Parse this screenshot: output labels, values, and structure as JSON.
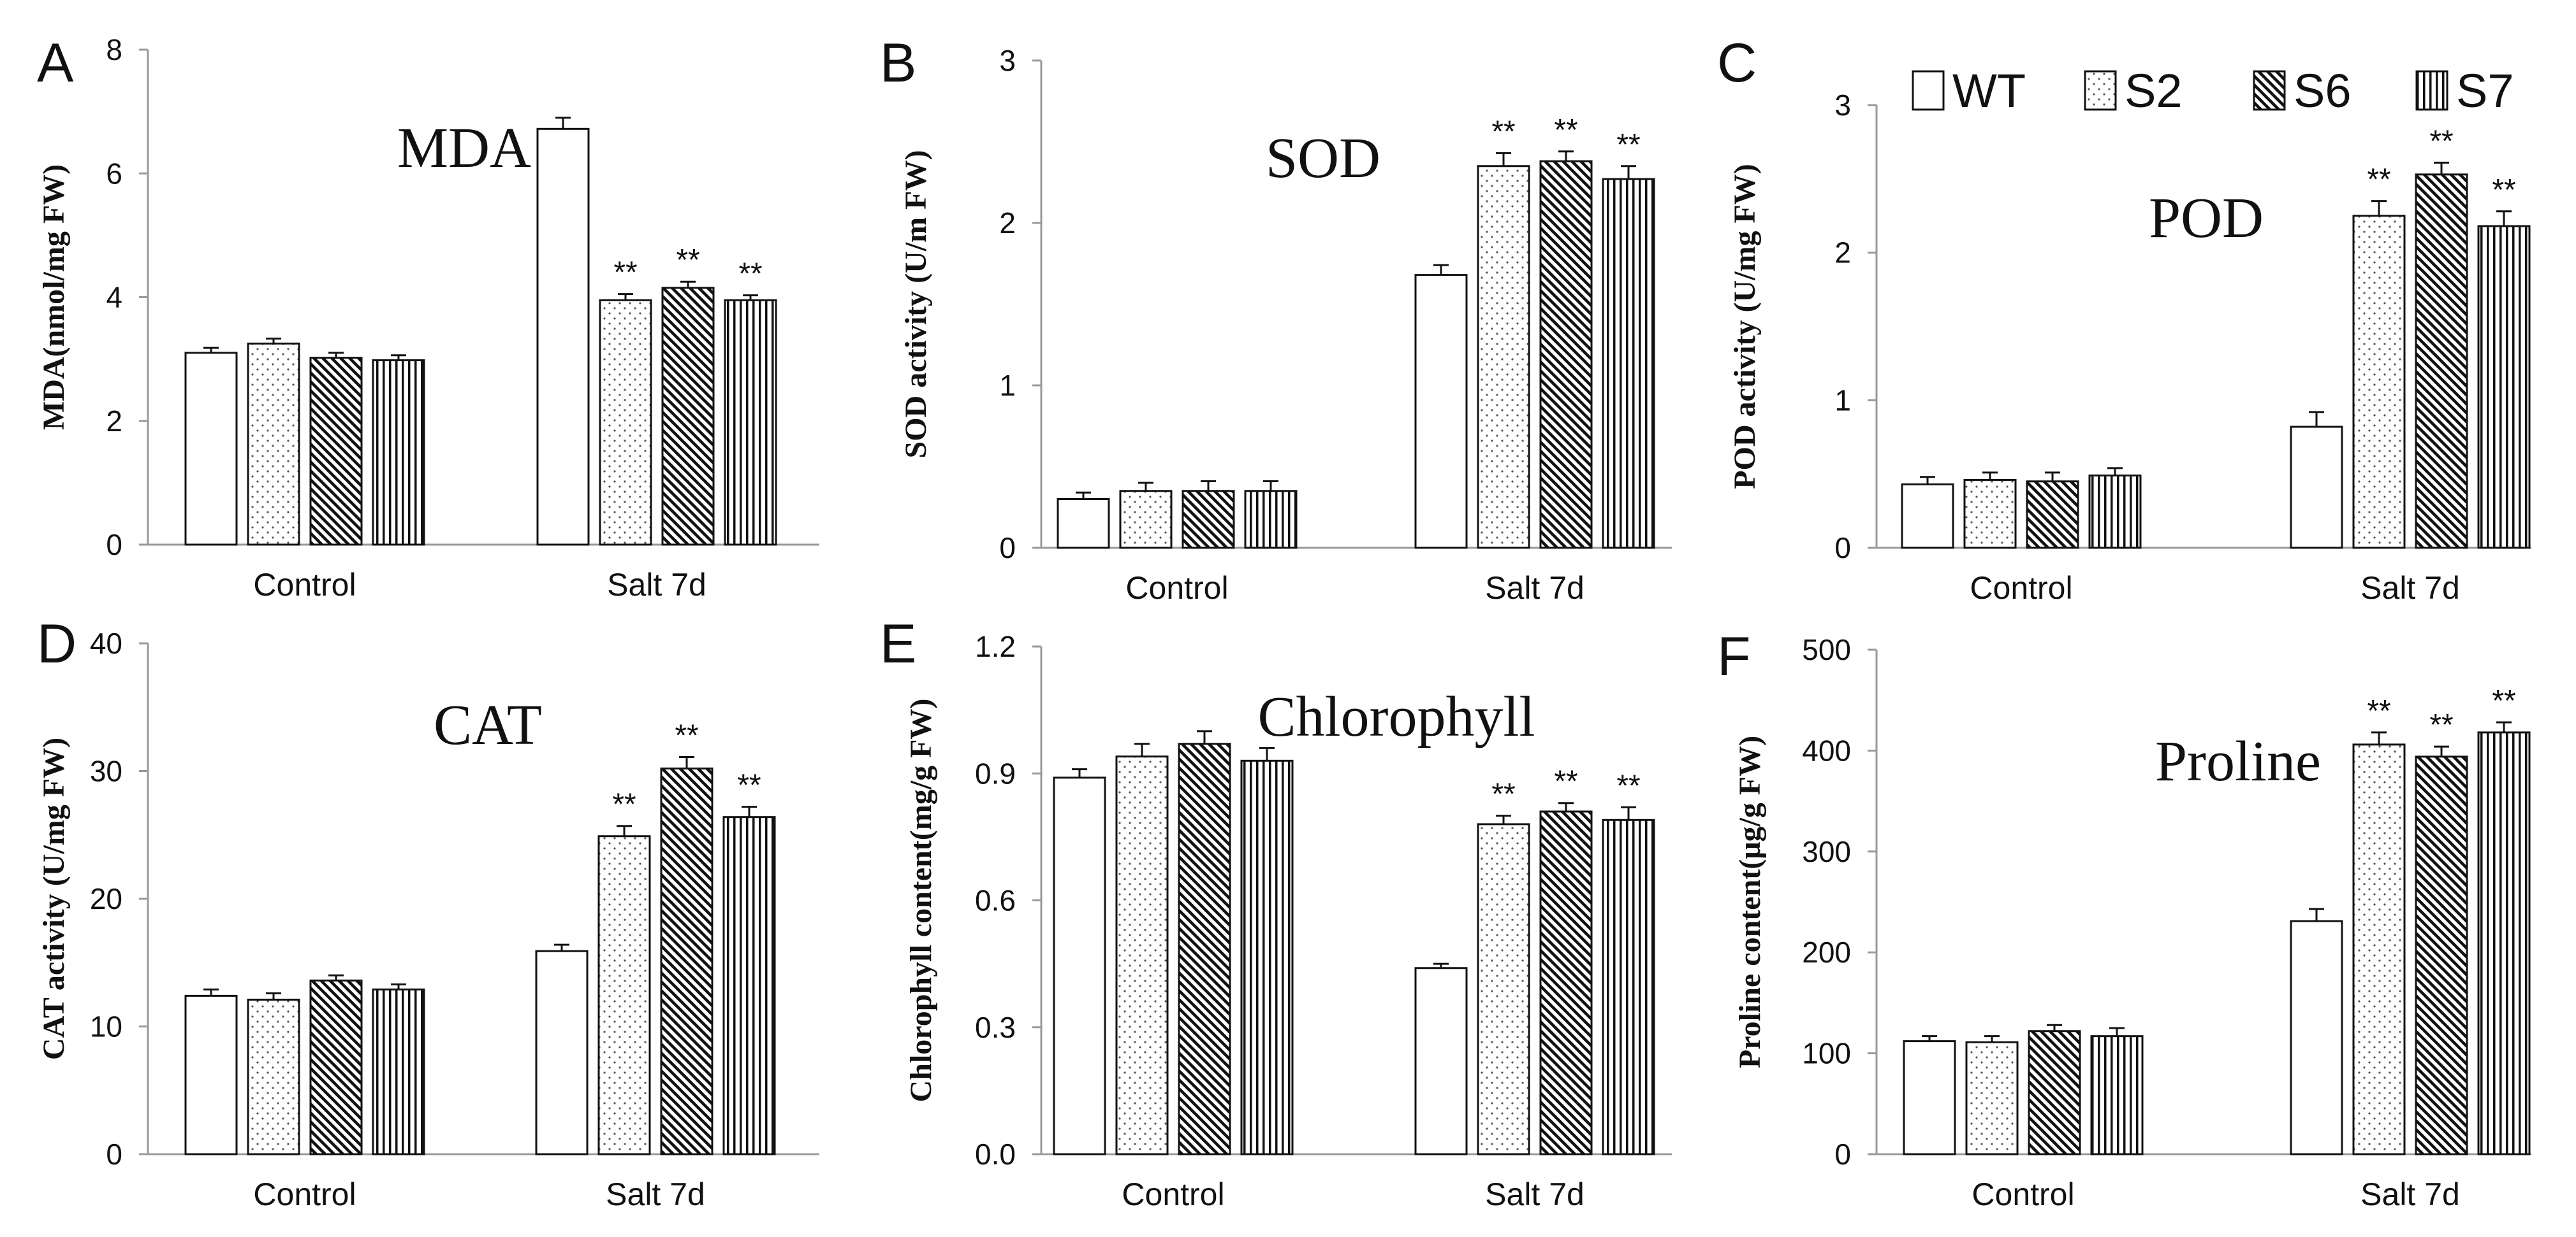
{
  "legend": {
    "items": [
      {
        "label": "WT",
        "pattern": "blank"
      },
      {
        "label": "S2",
        "pattern": "dots"
      },
      {
        "label": "S6",
        "pattern": "diag"
      },
      {
        "label": "S7",
        "pattern": "vert"
      }
    ]
  },
  "chart_data": [
    {
      "panel": "A",
      "type": "bar",
      "title": "MDA",
      "ylabel": "MDA(nmol/mg FW)",
      "xlabel": "",
      "categories": [
        "Control",
        "Salt 7d"
      ],
      "ylim": [
        0,
        8
      ],
      "yticks": [
        "0",
        "2",
        "4",
        "6",
        "8"
      ],
      "ytick_values": [
        0,
        2,
        4,
        6,
        8
      ],
      "series": [
        {
          "name": "WT",
          "values": [
            3.1,
            6.72
          ],
          "errors": [
            0.08,
            0.18
          ],
          "marks": [
            "",
            ""
          ]
        },
        {
          "name": "S2",
          "values": [
            3.25,
            3.95
          ],
          "errors": [
            0.08,
            0.1
          ],
          "marks": [
            "",
            "**"
          ]
        },
        {
          "name": "S6",
          "values": [
            3.02,
            4.15
          ],
          "errors": [
            0.08,
            0.1
          ],
          "marks": [
            "",
            "**"
          ]
        },
        {
          "name": "S7",
          "values": [
            2.98,
            3.95
          ],
          "errors": [
            0.08,
            0.08
          ],
          "marks": [
            "",
            "**"
          ]
        }
      ]
    },
    {
      "panel": "B",
      "type": "bar",
      "title": "SOD",
      "ylabel": "SOD activity (U/m FW)",
      "xlabel": "",
      "categories": [
        "Control",
        "Salt 7d"
      ],
      "ylim": [
        0,
        3
      ],
      "yticks": [
        "0",
        "1",
        "2",
        "3"
      ],
      "ytick_values": [
        0,
        1,
        2,
        3
      ],
      "series": [
        {
          "name": "WT",
          "values": [
            0.3,
            1.68
          ],
          "errors": [
            0.04,
            0.06
          ],
          "marks": [
            "",
            ""
          ]
        },
        {
          "name": "S2",
          "values": [
            0.35,
            2.35
          ],
          "errors": [
            0.05,
            0.08
          ],
          "marks": [
            "",
            "**"
          ]
        },
        {
          "name": "S6",
          "values": [
            0.35,
            2.38
          ],
          "errors": [
            0.06,
            0.06
          ],
          "marks": [
            "",
            "**"
          ]
        },
        {
          "name": "S7",
          "values": [
            0.35,
            2.27
          ],
          "errors": [
            0.06,
            0.08
          ],
          "marks": [
            "",
            "**"
          ]
        }
      ]
    },
    {
      "panel": "C",
      "type": "bar",
      "title": "POD",
      "ylabel": "POD activity (U/mg FW)",
      "xlabel": "",
      "categories": [
        "Control",
        "Salt 7d"
      ],
      "ylim": [
        0,
        3
      ],
      "yticks": [
        "0",
        "1",
        "2",
        "3"
      ],
      "ytick_values": [
        0,
        1,
        2,
        3
      ],
      "series": [
        {
          "name": "WT",
          "values": [
            0.43,
            0.82
          ],
          "errors": [
            0.05,
            0.1
          ],
          "marks": [
            "",
            ""
          ]
        },
        {
          "name": "S2",
          "values": [
            0.46,
            2.25
          ],
          "errors": [
            0.05,
            0.1
          ],
          "marks": [
            "",
            "**"
          ]
        },
        {
          "name": "S6",
          "values": [
            0.45,
            2.53
          ],
          "errors": [
            0.06,
            0.08
          ],
          "marks": [
            "",
            "**"
          ]
        },
        {
          "name": "S7",
          "values": [
            0.49,
            2.18
          ],
          "errors": [
            0.05,
            0.1
          ],
          "marks": [
            "",
            "**"
          ]
        }
      ]
    },
    {
      "panel": "D",
      "type": "bar",
      "title": "CAT",
      "ylabel": "CAT activity (U/mg FW)",
      "xlabel": "",
      "categories": [
        "Control",
        "Salt 7d"
      ],
      "ylim": [
        0,
        40
      ],
      "yticks": [
        "0",
        "10",
        "20",
        "30",
        "40"
      ],
      "ytick_values": [
        0,
        10,
        20,
        30,
        40
      ],
      "series": [
        {
          "name": "WT",
          "values": [
            12.4,
            15.9
          ],
          "errors": [
            0.5,
            0.5
          ],
          "marks": [
            "",
            ""
          ]
        },
        {
          "name": "S2",
          "values": [
            12.1,
            24.9
          ],
          "errors": [
            0.5,
            0.8
          ],
          "marks": [
            "",
            "**"
          ]
        },
        {
          "name": "S6",
          "values": [
            13.6,
            30.2
          ],
          "errors": [
            0.4,
            0.9
          ],
          "marks": [
            "",
            "**"
          ]
        },
        {
          "name": "S7",
          "values": [
            12.9,
            26.4
          ],
          "errors": [
            0.4,
            0.8
          ],
          "marks": [
            "",
            "**"
          ]
        }
      ]
    },
    {
      "panel": "E",
      "type": "bar",
      "title": "Chlorophyll",
      "ylabel": "Chlorophyll content(mg/g FW)",
      "xlabel": "",
      "categories": [
        "Control",
        "Salt 7d"
      ],
      "ylim": [
        0,
        1.2
      ],
      "yticks": [
        "0.0",
        "0.3",
        "0.6",
        "0.9",
        "1.2"
      ],
      "ytick_values": [
        0,
        0.3,
        0.6,
        0.9,
        1.2
      ],
      "series": [
        {
          "name": "WT",
          "values": [
            0.89,
            0.44
          ],
          "errors": [
            0.02,
            0.01
          ],
          "marks": [
            "",
            ""
          ]
        },
        {
          "name": "S2",
          "values": [
            0.94,
            0.78
          ],
          "errors": [
            0.03,
            0.02
          ],
          "marks": [
            "",
            "**"
          ]
        },
        {
          "name": "S6",
          "values": [
            0.97,
            0.81
          ],
          "errors": [
            0.03,
            0.02
          ],
          "marks": [
            "",
            "**"
          ]
        },
        {
          "name": "S7",
          "values": [
            0.93,
            0.79
          ],
          "errors": [
            0.03,
            0.03
          ],
          "marks": [
            "",
            "**"
          ]
        }
      ]
    },
    {
      "panel": "F",
      "type": "bar",
      "title": "Proline",
      "ylabel": "Proline content(μg/g FW)",
      "xlabel": "",
      "categories": [
        "Control",
        "Salt 7d"
      ],
      "ylim": [
        0,
        500
      ],
      "yticks": [
        "0",
        "100",
        "200",
        "300",
        "400",
        "500"
      ],
      "ytick_values": [
        0,
        100,
        200,
        300,
        400,
        500
      ],
      "series": [
        {
          "name": "WT",
          "values": [
            112,
            231
          ],
          "errors": [
            5,
            12
          ],
          "marks": [
            "",
            ""
          ]
        },
        {
          "name": "S2",
          "values": [
            111,
            406
          ],
          "errors": [
            6,
            12
          ],
          "marks": [
            "",
            "**"
          ]
        },
        {
          "name": "S6",
          "values": [
            122,
            394
          ],
          "errors": [
            6,
            10
          ],
          "marks": [
            "",
            "**"
          ]
        },
        {
          "name": "S7",
          "values": [
            117,
            418
          ],
          "errors": [
            8,
            10
          ],
          "marks": [
            "",
            "**"
          ]
        }
      ]
    }
  ]
}
